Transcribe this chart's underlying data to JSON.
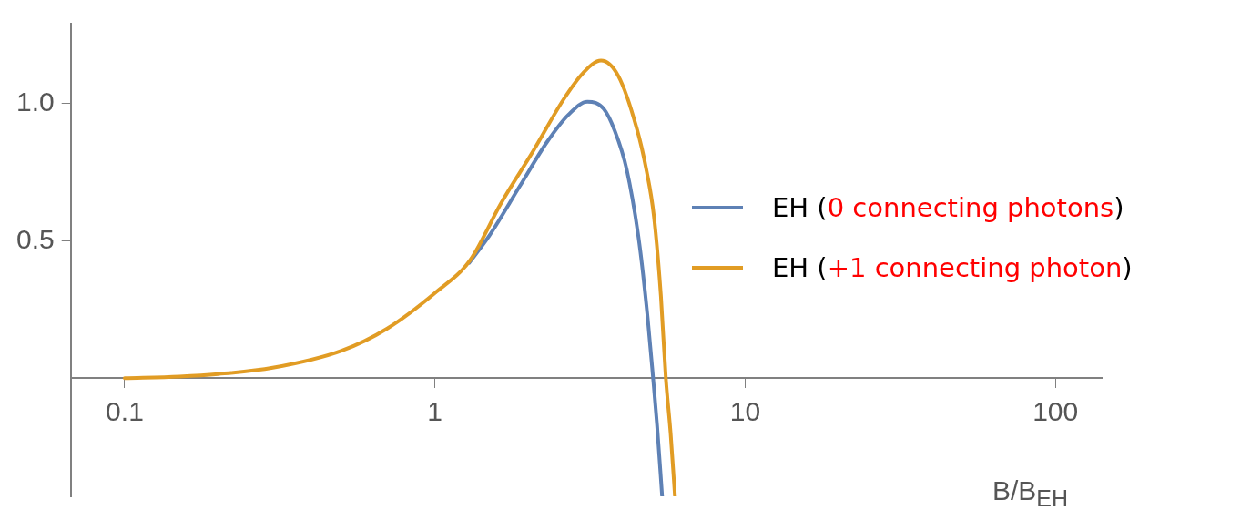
{
  "chart_data": {
    "type": "line",
    "xlabel": "B/B$_{EH}$",
    "log": "x",
    "xlim": [
      0.067,
      141
    ],
    "xticks": [
      0.1,
      1,
      10,
      100
    ],
    "ylim": [
      -0.43,
      1.29
    ],
    "yticks": [
      {
        "value": 0.5,
        "label": "0.5"
      },
      {
        "value": 1,
        "label": "1.0"
      }
    ],
    "grid": false,
    "legend": "right",
    "marker": "none",
    "line_style": "solid",
    "series": [
      {
        "name": "EH (0 connecting photons)",
        "color": "#5e81b5",
        "x": [
          1.29,
          1.5,
          1.88,
          2.3,
          2.7,
          3.1,
          3.5,
          3.8,
          4.15,
          4.56,
          4.85,
          5.05,
          5.2,
          5.4
        ],
        "values": [
          0.42,
          0.52,
          0.7,
          0.86,
          0.96,
          1.006,
          0.98,
          0.9,
          0.76,
          0.49,
          0.22,
          0,
          -0.17,
          -0.43
        ]
      },
      {
        "name": "EH (+1 connecting photon)",
        "color": "#e19c24",
        "x": [
          0.1,
          0.15,
          0.2,
          0.3,
          0.5,
          0.7,
          1,
          1.3,
          1.63,
          2.07,
          2.6,
          3.0,
          3.43,
          3.9,
          4.47,
          4.8,
          5.08,
          5.35,
          5.55,
          5.75,
          5.94
        ],
        "values": [
          0,
          0.006,
          0.015,
          0.038,
          0.1,
          0.18,
          0.31,
          0.43,
          0.635,
          0.825,
          1.015,
          1.11,
          1.156,
          1.1,
          0.91,
          0.76,
          0.59,
          0.3,
          0,
          -0.2,
          -0.43
        ]
      }
    ]
  }
}
